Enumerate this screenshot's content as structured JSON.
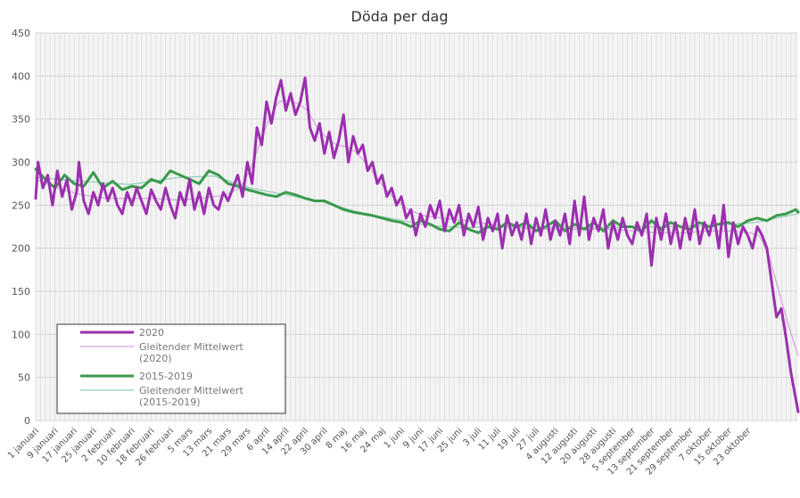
{
  "chart_data": {
    "type": "line",
    "title": "Döda per dag",
    "xlabel": "",
    "ylabel": "",
    "ylim": [
      0,
      450
    ],
    "yticks": [
      0,
      50,
      100,
      150,
      200,
      250,
      300,
      350,
      400,
      450
    ],
    "grid": true,
    "legend_position": "bottom-left",
    "day_labels": [
      "1 januari",
      "9 januari",
      "17 januari",
      "25 januari",
      "2 februari",
      "10 februari",
      "18 februari",
      "26 februari",
      "5 mars",
      "13 mars",
      "21 mars",
      "29 mars",
      "6 april",
      "14 april",
      "22 april",
      "30 april",
      "8 maj",
      "16 maj",
      "24 maj",
      "1 juni",
      "9 juni",
      "17 juni",
      "25 juni",
      "3 juli",
      "11 juli",
      "19 juli",
      "27 juli",
      "4 augusti",
      "12 augusti",
      "20 augusti",
      "28 augusti",
      "5 september",
      "13 september",
      "21 september",
      "29 september",
      "7 oktober",
      "15 oktober",
      "23 oktober"
    ],
    "x_days": [
      1,
      300
    ],
    "series": [
      {
        "name": "2020",
        "color": "#9b2fae",
        "width": 3,
        "keypoints": [
          [
            1,
            258
          ],
          [
            2,
            300
          ],
          [
            4,
            270
          ],
          [
            6,
            285
          ],
          [
            8,
            250
          ],
          [
            10,
            290
          ],
          [
            12,
            260
          ],
          [
            14,
            280
          ],
          [
            16,
            245
          ],
          [
            18,
            265
          ],
          [
            19,
            300
          ],
          [
            21,
            255
          ],
          [
            23,
            240
          ],
          [
            25,
            265
          ],
          [
            27,
            250
          ],
          [
            29,
            275
          ],
          [
            31,
            255
          ],
          [
            33,
            270
          ],
          [
            35,
            250
          ],
          [
            37,
            240
          ],
          [
            39,
            265
          ],
          [
            41,
            250
          ],
          [
            43,
            270
          ],
          [
            45,
            255
          ],
          [
            47,
            240
          ],
          [
            49,
            268
          ],
          [
            51,
            255
          ],
          [
            53,
            245
          ],
          [
            55,
            270
          ],
          [
            57,
            250
          ],
          [
            59,
            235
          ],
          [
            61,
            265
          ],
          [
            63,
            250
          ],
          [
            65,
            280
          ],
          [
            67,
            245
          ],
          [
            69,
            265
          ],
          [
            71,
            240
          ],
          [
            73,
            270
          ],
          [
            75,
            250
          ],
          [
            77,
            245
          ],
          [
            79,
            265
          ],
          [
            81,
            255
          ],
          [
            83,
            270
          ],
          [
            85,
            285
          ],
          [
            87,
            260
          ],
          [
            89,
            300
          ],
          [
            91,
            275
          ],
          [
            93,
            340
          ],
          [
            95,
            320
          ],
          [
            97,
            370
          ],
          [
            99,
            345
          ],
          [
            101,
            375
          ],
          [
            103,
            395
          ],
          [
            105,
            360
          ],
          [
            107,
            380
          ],
          [
            109,
            355
          ],
          [
            111,
            370
          ],
          [
            113,
            398
          ],
          [
            115,
            340
          ],
          [
            117,
            325
          ],
          [
            119,
            345
          ],
          [
            121,
            310
          ],
          [
            123,
            335
          ],
          [
            125,
            305
          ],
          [
            127,
            325
          ],
          [
            129,
            355
          ],
          [
            131,
            300
          ],
          [
            133,
            330
          ],
          [
            135,
            310
          ],
          [
            137,
            320
          ],
          [
            139,
            290
          ],
          [
            141,
            300
          ],
          [
            143,
            275
          ],
          [
            145,
            285
          ],
          [
            147,
            260
          ],
          [
            149,
            270
          ],
          [
            151,
            250
          ],
          [
            153,
            260
          ],
          [
            155,
            235
          ],
          [
            157,
            245
          ],
          [
            159,
            215
          ],
          [
            161,
            240
          ],
          [
            163,
            225
          ],
          [
            165,
            250
          ],
          [
            167,
            235
          ],
          [
            169,
            255
          ],
          [
            171,
            220
          ],
          [
            173,
            245
          ],
          [
            175,
            230
          ],
          [
            177,
            250
          ],
          [
            179,
            215
          ],
          [
            181,
            240
          ],
          [
            183,
            225
          ],
          [
            185,
            248
          ],
          [
            187,
            210
          ],
          [
            189,
            235
          ],
          [
            191,
            220
          ],
          [
            193,
            240
          ],
          [
            195,
            200
          ],
          [
            197,
            238
          ],
          [
            199,
            215
          ],
          [
            201,
            230
          ],
          [
            203,
            210
          ],
          [
            205,
            240
          ],
          [
            207,
            205
          ],
          [
            209,
            235
          ],
          [
            211,
            215
          ],
          [
            213,
            245
          ],
          [
            215,
            210
          ],
          [
            217,
            232
          ],
          [
            219,
            215
          ],
          [
            221,
            240
          ],
          [
            223,
            205
          ],
          [
            225,
            255
          ],
          [
            227,
            215
          ],
          [
            229,
            260
          ],
          [
            231,
            210
          ],
          [
            233,
            235
          ],
          [
            235,
            220
          ],
          [
            237,
            245
          ],
          [
            239,
            200
          ],
          [
            241,
            230
          ],
          [
            243,
            210
          ],
          [
            245,
            235
          ],
          [
            247,
            215
          ],
          [
            249,
            205
          ],
          [
            251,
            230
          ],
          [
            253,
            215
          ],
          [
            255,
            240
          ],
          [
            257,
            180
          ],
          [
            259,
            235
          ],
          [
            261,
            210
          ],
          [
            263,
            240
          ],
          [
            265,
            205
          ],
          [
            267,
            230
          ],
          [
            269,
            200
          ],
          [
            271,
            235
          ],
          [
            273,
            210
          ],
          [
            275,
            245
          ],
          [
            277,
            205
          ],
          [
            279,
            230
          ],
          [
            281,
            215
          ],
          [
            283,
            238
          ],
          [
            285,
            200
          ],
          [
            287,
            250
          ],
          [
            289,
            190
          ],
          [
            291,
            230
          ],
          [
            293,
            205
          ],
          [
            295,
            225
          ],
          [
            297,
            215
          ],
          [
            299,
            200
          ],
          [
            301,
            225
          ],
          [
            303,
            215
          ],
          [
            305,
            200
          ],
          [
            307,
            160
          ],
          [
            309,
            120
          ],
          [
            311,
            130
          ],
          [
            313,
            95
          ],
          [
            315,
            55
          ],
          [
            317,
            25
          ],
          [
            318,
            10
          ]
        ]
      },
      {
        "name": "Gleitender Mittelwert (2020)",
        "color": "#d6a0e0",
        "width": 1.2,
        "keypoints": [
          [
            1,
            280
          ],
          [
            10,
            270
          ],
          [
            20,
            262
          ],
          [
            30,
            258
          ],
          [
            40,
            258
          ],
          [
            50,
            258
          ],
          [
            60,
            256
          ],
          [
            70,
            258
          ],
          [
            80,
            262
          ],
          [
            86,
            270
          ],
          [
            90,
            290
          ],
          [
            94,
            320
          ],
          [
            98,
            350
          ],
          [
            102,
            370
          ],
          [
            106,
            372
          ],
          [
            110,
            368
          ],
          [
            114,
            360
          ],
          [
            118,
            340
          ],
          [
            122,
            328
          ],
          [
            126,
            320
          ],
          [
            130,
            318
          ],
          [
            134,
            312
          ],
          [
            138,
            300
          ],
          [
            142,
            285
          ],
          [
            146,
            270
          ],
          [
            150,
            258
          ],
          [
            156,
            245
          ],
          [
            162,
            238
          ],
          [
            170,
            235
          ],
          [
            180,
            232
          ],
          [
            190,
            228
          ],
          [
            200,
            224
          ],
          [
            210,
            222
          ],
          [
            220,
            222
          ],
          [
            230,
            222
          ],
          [
            240,
            222
          ],
          [
            250,
            220
          ],
          [
            260,
            218
          ],
          [
            270,
            218
          ],
          [
            280,
            220
          ],
          [
            290,
            220
          ],
          [
            298,
            218
          ],
          [
            302,
            214
          ],
          [
            306,
            190
          ],
          [
            310,
            150
          ],
          [
            314,
            110
          ],
          [
            318,
            75
          ]
        ]
      },
      {
        "name": "2015-2019",
        "color": "#3a9a4c",
        "width": 3,
        "keypoints": [
          [
            1,
            292
          ],
          [
            5,
            280
          ],
          [
            9,
            270
          ],
          [
            13,
            285
          ],
          [
            17,
            275
          ],
          [
            21,
            272
          ],
          [
            25,
            288
          ],
          [
            29,
            270
          ],
          [
            33,
            278
          ],
          [
            37,
            268
          ],
          [
            41,
            272
          ],
          [
            45,
            270
          ],
          [
            49,
            280
          ],
          [
            53,
            276
          ],
          [
            57,
            290
          ],
          [
            61,
            285
          ],
          [
            65,
            280
          ],
          [
            69,
            275
          ],
          [
            73,
            290
          ],
          [
            77,
            285
          ],
          [
            81,
            275
          ],
          [
            85,
            272
          ],
          [
            89,
            268
          ],
          [
            93,
            265
          ],
          [
            97,
            262
          ],
          [
            101,
            260
          ],
          [
            105,
            265
          ],
          [
            109,
            262
          ],
          [
            113,
            258
          ],
          [
            117,
            255
          ],
          [
            121,
            255
          ],
          [
            125,
            250
          ],
          [
            129,
            245
          ],
          [
            133,
            242
          ],
          [
            137,
            240
          ],
          [
            141,
            238
          ],
          [
            145,
            235
          ],
          [
            149,
            232
          ],
          [
            153,
            230
          ],
          [
            157,
            225
          ],
          [
            161,
            232
          ],
          [
            165,
            228
          ],
          [
            169,
            222
          ],
          [
            173,
            220
          ],
          [
            177,
            230
          ],
          [
            181,
            222
          ],
          [
            185,
            218
          ],
          [
            189,
            225
          ],
          [
            193,
            222
          ],
          [
            197,
            230
          ],
          [
            201,
            225
          ],
          [
            205,
            230
          ],
          [
            209,
            220
          ],
          [
            213,
            225
          ],
          [
            217,
            232
          ],
          [
            221,
            220
          ],
          [
            225,
            228
          ],
          [
            229,
            222
          ],
          [
            233,
            230
          ],
          [
            237,
            220
          ],
          [
            241,
            232
          ],
          [
            245,
            225
          ],
          [
            249,
            225
          ],
          [
            253,
            220
          ],
          [
            257,
            232
          ],
          [
            261,
            222
          ],
          [
            265,
            230
          ],
          [
            269,
            225
          ],
          [
            273,
            222
          ],
          [
            277,
            230
          ],
          [
            281,
            225
          ],
          [
            285,
            228
          ],
          [
            289,
            230
          ],
          [
            293,
            225
          ],
          [
            297,
            232
          ],
          [
            301,
            235
          ],
          [
            305,
            232
          ],
          [
            309,
            238
          ],
          [
            313,
            240
          ],
          [
            317,
            245
          ],
          [
            318,
            242
          ]
        ]
      },
      {
        "name": "Gleitender Mittelwert (2015-2019)",
        "color": "#8ecdb5",
        "width": 1.2,
        "keypoints": [
          [
            1,
            282
          ],
          [
            20,
            278
          ],
          [
            40,
            274
          ],
          [
            60,
            282
          ],
          [
            75,
            284
          ],
          [
            90,
            270
          ],
          [
            105,
            262
          ],
          [
            120,
            254
          ],
          [
            135,
            242
          ],
          [
            150,
            234
          ],
          [
            165,
            226
          ],
          [
            180,
            224
          ],
          [
            200,
            225
          ],
          [
            220,
            224
          ],
          [
            240,
            224
          ],
          [
            260,
            225
          ],
          [
            280,
            226
          ],
          [
            300,
            230
          ],
          [
            318,
            240
          ]
        ]
      }
    ]
  },
  "legend": {
    "entries": [
      {
        "lines": [
          "2020"
        ],
        "series": 0
      },
      {
        "lines": [
          "Gleitender Mittelwert",
          "(2020)"
        ],
        "series": 1
      },
      {
        "lines": [
          "2015-2019"
        ],
        "series": 2
      },
      {
        "lines": [
          "Gleitender Mittelwert",
          "(2015-2019)"
        ],
        "series": 3
      }
    ]
  }
}
